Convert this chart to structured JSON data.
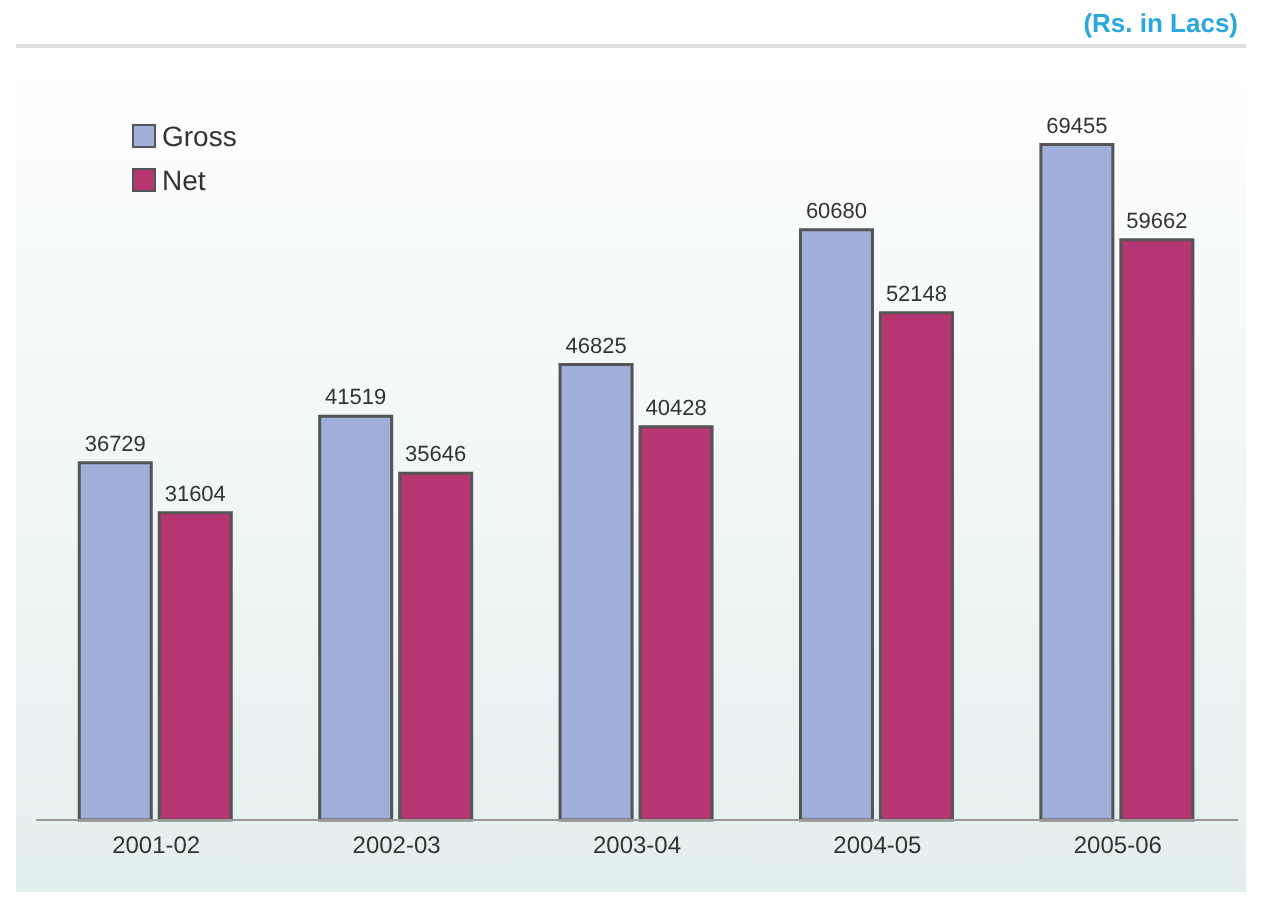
{
  "chart_data": {
    "type": "bar",
    "subtitle": "(Rs. in Lacs)",
    "categories": [
      "2001-02",
      "2002-03",
      "2003-04",
      "2004-05",
      "2005-06"
    ],
    "series": [
      {
        "name": "Gross",
        "color": "#9fafda",
        "values": [
          36729,
          41519,
          46825,
          60680,
          69455
        ]
      },
      {
        "name": "Net",
        "color": "#b53670",
        "values": [
          31604,
          35646,
          40428,
          52148,
          59662
        ]
      }
    ],
    "data_labels": true,
    "legend": "top left",
    "grid": false
  }
}
